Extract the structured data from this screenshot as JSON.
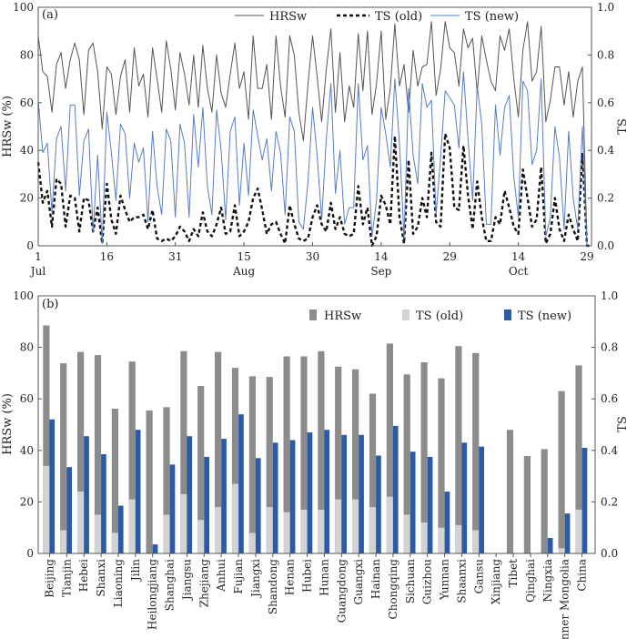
{
  "chart_data": [
    {
      "type": "line",
      "panel_label": "(a)",
      "ylabel": "HRSw (%)",
      "y2label": "TS",
      "ylim": [
        0,
        100
      ],
      "y2lim": [
        0,
        1.0
      ],
      "yticks": [
        "0",
        "20",
        "40",
        "60",
        "80",
        "100"
      ],
      "y2ticks": [
        "0.0",
        "0.2",
        "0.4",
        "0.6",
        "0.8",
        "1.0"
      ],
      "xrange": [
        1,
        122
      ],
      "xticks": [
        {
          "day": 1,
          "label": "1"
        },
        {
          "day": 16,
          "label": "16"
        },
        {
          "day": 31,
          "label": "31"
        },
        {
          "day": 46,
          "label": "15"
        },
        {
          "day": 61,
          "label": "30"
        },
        {
          "day": 76,
          "label": "14"
        },
        {
          "day": 91,
          "label": "29"
        },
        {
          "day": 106,
          "label": "14"
        },
        {
          "day": 121,
          "label": "29"
        }
      ],
      "month_labels": [
        {
          "day": 1,
          "label": "Jul"
        },
        {
          "day": 46,
          "label": "Aug"
        },
        {
          "day": 76,
          "label": "Sep"
        },
        {
          "day": 106,
          "label": "Oct"
        }
      ],
      "legend": [
        "HRSw",
        "TS (old)",
        "TS (new)"
      ],
      "colors": {
        "hrsw": "#555555",
        "ts_old": "#111111",
        "ts_new": "#5a7cc0"
      },
      "series": [
        {
          "name": "HRSw",
          "axis": "left",
          "values": [
            88,
            73,
            71,
            56,
            76,
            81,
            66,
            78,
            85,
            78,
            55,
            82,
            85,
            73,
            49,
            75,
            72,
            55,
            71,
            78,
            56,
            83,
            67,
            72,
            54,
            83,
            70,
            56,
            86,
            74,
            57,
            81,
            72,
            59,
            80,
            58,
            84,
            66,
            56,
            80,
            64,
            58,
            72,
            85,
            66,
            73,
            53,
            88,
            66,
            66,
            76,
            53,
            88,
            67,
            54,
            88,
            80,
            56,
            44,
            68,
            88,
            71,
            52,
            74,
            91,
            56,
            81,
            52,
            67,
            58,
            89,
            65,
            90,
            55,
            68,
            90,
            53,
            66,
            93,
            67,
            76,
            56,
            82,
            67,
            75,
            76,
            94,
            63,
            74,
            94,
            83,
            81,
            67,
            91,
            83,
            87,
            64,
            88,
            78,
            69,
            65,
            88,
            82,
            91,
            70,
            54,
            82,
            94,
            69,
            73,
            92,
            52,
            61,
            75,
            75,
            59,
            73,
            54,
            69,
            75,
            0,
            0
          ]
        },
        {
          "name": "TS (old)",
          "axis": "right",
          "values": [
            0.35,
            0.18,
            0.23,
            0.08,
            0.28,
            0.26,
            0.08,
            0.21,
            0.2,
            0.06,
            0.2,
            0.19,
            0.06,
            0.16,
            0.01,
            0.26,
            0.11,
            0.05,
            0.21,
            0.15,
            0.1,
            0.12,
            0.12,
            0.13,
            0.07,
            0.15,
            0.03,
            0.02,
            0.03,
            0.02,
            0.04,
            0.08,
            0.06,
            0.02,
            0.07,
            0.04,
            0.14,
            0.06,
            0.04,
            0.09,
            0.16,
            0.05,
            0.06,
            0.17,
            0.04,
            0.06,
            0.1,
            0.2,
            0.24,
            0.15,
            0.05,
            0.09,
            0.1,
            0.05,
            0.01,
            0.17,
            0.09,
            0.03,
            0.02,
            0.03,
            0.12,
            0.17,
            0.09,
            0.06,
            0.18,
            0.07,
            0.12,
            0.05,
            0.04,
            0.05,
            0.25,
            0.09,
            0.16,
            0.0,
            0.04,
            0.21,
            0.17,
            0.09,
            0.46,
            0.12,
            0.01,
            0.36,
            0.05,
            0.08,
            0.2,
            0.12,
            0.39,
            0.1,
            0.08,
            0.47,
            0.41,
            0.16,
            0.15,
            0.42,
            0.21,
            0.07,
            0.27,
            0.12,
            0.02,
            0.02,
            0.12,
            0.09,
            0.23,
            0.16,
            0.08,
            0.05,
            0.32,
            0.2,
            0.08,
            0.11,
            0.33,
            0.01,
            0.05,
            0.2,
            0.07,
            0.02,
            0.13,
            0.07,
            0.02,
            0.39,
            0.0,
            0.0
          ]
        },
        {
          "name": "TS (new)",
          "axis": "right",
          "values": [
            0.61,
            0.39,
            0.43,
            0.14,
            0.45,
            0.5,
            0.23,
            0.59,
            0.59,
            0.21,
            0.44,
            0.49,
            0.06,
            0.38,
            0.01,
            0.56,
            0.39,
            0.19,
            0.51,
            0.47,
            0.2,
            0.43,
            0.35,
            0.41,
            0.1,
            0.48,
            0.25,
            0.13,
            0.49,
            0.44,
            0.12,
            0.51,
            0.43,
            0.12,
            0.55,
            0.33,
            0.58,
            0.25,
            0.13,
            0.57,
            0.4,
            0.11,
            0.48,
            0.54,
            0.17,
            0.43,
            0.21,
            0.57,
            0.46,
            0.36,
            0.45,
            0.23,
            0.48,
            0.39,
            0.13,
            0.54,
            0.48,
            0.1,
            0.07,
            0.27,
            0.58,
            0.38,
            0.11,
            0.45,
            0.68,
            0.22,
            0.4,
            0.09,
            0.16,
            0.16,
            0.68,
            0.36,
            0.42,
            0.04,
            0.19,
            0.58,
            0.47,
            0.33,
            0.7,
            0.43,
            0.03,
            0.66,
            0.38,
            0.26,
            0.68,
            0.58,
            0.61,
            0.13,
            0.37,
            0.65,
            0.62,
            0.59,
            0.41,
            0.73,
            0.45,
            0.19,
            0.67,
            0.51,
            0.09,
            0.09,
            0.59,
            0.38,
            0.58,
            0.63,
            0.29,
            0.12,
            0.69,
            0.65,
            0.34,
            0.4,
            0.7,
            0.04,
            0.12,
            0.5,
            0.37,
            0.07,
            0.48,
            0.2,
            0.07,
            0.5,
            0.0,
            0.0
          ]
        }
      ]
    },
    {
      "type": "bar",
      "panel_label": "(b)",
      "ylabel": "HRSw (%)",
      "y2label": "TS",
      "ylim": [
        0,
        100
      ],
      "y2lim": [
        0,
        1.0
      ],
      "yticks": [
        "0",
        "20",
        "40",
        "60",
        "80",
        "100"
      ],
      "y2ticks": [
        "0.0",
        "0.2",
        "0.4",
        "0.6",
        "0.8",
        "1.0"
      ],
      "legend": [
        "HRSw",
        "TS (old)",
        "TS (new)"
      ],
      "colors": {
        "hrsw": "#8c8c8c",
        "ts_old": "#d3d3d3",
        "ts_new": "#2a5aa8"
      },
      "categories": [
        "Beijing",
        "Tianjin",
        "Hebei",
        "Shanxi",
        "Liaoning",
        "Jilin",
        "Heilongjiang",
        "Shanghai",
        "Jiangsu",
        "Zhejiang",
        "Anhui",
        "Fujian",
        "Jiangxi",
        "Shandong",
        "Henan",
        "Hubei",
        "Hunan",
        "Guangdong",
        "Guangxi",
        "Hainan",
        "Chongqing",
        "Sichuan",
        "Guizhou",
        "Yunnan",
        "Shaanxi",
        "Gansu",
        "Xinjiang",
        "Tibet",
        "Qinghai",
        "Ningxia",
        "Inner Mongolia",
        "China"
      ],
      "series": [
        {
          "name": "HRSw",
          "axis": "left",
          "values": [
            88.5,
            73.8,
            78.2,
            77.0,
            56.2,
            74.5,
            55.5,
            56.8,
            78.5,
            65.0,
            78.2,
            72.0,
            68.8,
            68.5,
            76.5,
            76.5,
            78.5,
            72.5,
            71.5,
            62.0,
            81.5,
            69.5,
            74.2,
            68.0,
            80.5,
            77.8,
            0,
            48.0,
            37.8,
            40.5,
            63.0,
            73.0
          ]
        },
        {
          "name": "TS (old)",
          "axis": "right",
          "values": [
            0.34,
            0.09,
            0.24,
            0.15,
            0.08,
            0.21,
            0.0,
            0.15,
            0.23,
            0.13,
            0.18,
            0.27,
            0.08,
            0.18,
            0.16,
            0.17,
            0.17,
            0.21,
            0.21,
            0.18,
            0.22,
            0.15,
            0.12,
            0.1,
            0.11,
            0.09,
            0,
            0,
            0,
            0,
            0.02,
            0.17
          ]
        },
        {
          "name": "TS (new)",
          "axis": "right",
          "values": [
            0.52,
            0.335,
            0.455,
            0.385,
            0.185,
            0.48,
            0.035,
            0.345,
            0.455,
            0.375,
            0.445,
            0.54,
            0.37,
            0.43,
            0.44,
            0.47,
            0.48,
            0.46,
            0.46,
            0.38,
            0.495,
            0.395,
            0.375,
            0.24,
            0.43,
            0.415,
            0,
            0,
            0,
            0.06,
            0.155,
            0.41
          ]
        }
      ]
    }
  ]
}
